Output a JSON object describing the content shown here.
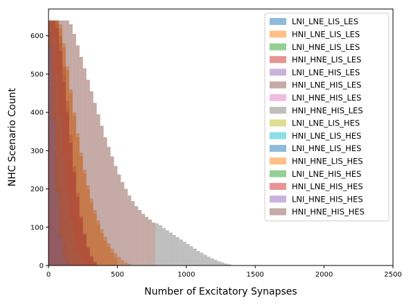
{
  "chart_data": {
    "type": "bar",
    "subtype": "overlapping-histogram",
    "title": "",
    "xlabel": "Number of Excitatory Synapses",
    "ylabel": "NHC Scenario Count",
    "xlim": [
      0,
      2500
    ],
    "ylim": [
      0,
      670
    ],
    "x_ticks": [
      0,
      500,
      1000,
      1500,
      2000,
      2500
    ],
    "y_ticks": [
      0,
      100,
      200,
      300,
      400,
      500,
      600
    ],
    "grid": false,
    "legend_position": "upper-right",
    "bar_opacity": 0.5,
    "series": [
      {
        "name": "LNI_LNE_LIS_LES",
        "color": "#1f77b4",
        "bin_edges": [
          0,
          25,
          50,
          75,
          100,
          125,
          150
        ],
        "counts": [
          640,
          520,
          350,
          200,
          90,
          30
        ]
      },
      {
        "name": "HNI_LNE_LIS_LES",
        "color": "#ff7f0e",
        "bin_edges": [
          0,
          25,
          50,
          75,
          100,
          125,
          150,
          175,
          200,
          225,
          250,
          275,
          300,
          325,
          350,
          375,
          400,
          425,
          450,
          475,
          500
        ],
        "counts": [
          640,
          640,
          640,
          620,
          570,
          510,
          450,
          390,
          335,
          285,
          240,
          200,
          165,
          135,
          108,
          85,
          65,
          48,
          33,
          20
        ]
      },
      {
        "name": "LNI_HNE_LIS_LES",
        "color": "#2ca02c",
        "bin_edges": [
          0,
          25,
          50,
          75,
          100,
          125,
          150
        ],
        "counts": [
          630,
          500,
          330,
          190,
          80,
          25
        ]
      },
      {
        "name": "HNI_HNE_LIS_LES",
        "color": "#d62728",
        "bin_edges": [
          0,
          25,
          50,
          75,
          100,
          125,
          150,
          175,
          200,
          225,
          250,
          275,
          300,
          325,
          350
        ],
        "counts": [
          640,
          640,
          640,
          600,
          520,
          430,
          340,
          260,
          190,
          130,
          85,
          50,
          25,
          10
        ]
      },
      {
        "name": "LNI_LNE_HIS_LES",
        "color": "#9467bd",
        "bin_edges": [
          0,
          25,
          50,
          75,
          100,
          125
        ],
        "counts": [
          600,
          420,
          230,
          100,
          30
        ]
      },
      {
        "name": "HNI_LNE_HIS_LES",
        "color": "#8c564b",
        "bin_edges": [
          0,
          25,
          50,
          75,
          100,
          125,
          150,
          175,
          200,
          225,
          250,
          275,
          300,
          325,
          350
        ],
        "counts": [
          640,
          640,
          630,
          580,
          500,
          410,
          320,
          240,
          175,
          120,
          80,
          48,
          25,
          10
        ]
      },
      {
        "name": "LNI_HNE_HIS_LES",
        "color": "#e377c2",
        "bin_edges": [
          0,
          25,
          50,
          75,
          100,
          125
        ],
        "counts": [
          590,
          400,
          210,
          90,
          25
        ]
      },
      {
        "name": "HNI_HNE_HIS_LES",
        "color": "#7f7f7f",
        "bin_edges": [
          775,
          800,
          825,
          850,
          875,
          900,
          925,
          950,
          975,
          1000,
          1025,
          1050,
          1075,
          1100,
          1125,
          1150,
          1175,
          1200,
          1225,
          1250,
          1275,
          1300,
          1325,
          1350
        ],
        "counts": [
          110,
          105,
          98,
          92,
          86,
          80,
          74,
          68,
          62,
          56,
          50,
          44,
          38,
          33,
          28,
          23,
          19,
          15,
          11,
          8,
          5,
          3,
          1
        ]
      },
      {
        "name": "LNI_LNE_LIS_HES",
        "color": "#bcbd22",
        "bin_edges": [
          0,
          25,
          50,
          75,
          100,
          125,
          150
        ],
        "counts": [
          620,
          480,
          300,
          160,
          70,
          20
        ]
      },
      {
        "name": "HNI_LNE_LIS_HES",
        "color": "#17becf",
        "bin_edges": [
          0,
          25,
          50,
          75,
          100,
          125,
          150,
          175,
          200,
          225,
          250
        ],
        "counts": [
          640,
          600,
          500,
          390,
          280,
          190,
          120,
          70,
          35,
          12
        ]
      },
      {
        "name": "LNI_HNE_LIS_HES",
        "color": "#1f77b4",
        "bin_edges": [
          0,
          25,
          50,
          75,
          100,
          125,
          150
        ],
        "counts": [
          610,
          470,
          290,
          150,
          60,
          18
        ]
      },
      {
        "name": "HNI_HNE_LIS_HES",
        "color": "#ff7f0e",
        "bin_edges": [
          0,
          25,
          50,
          75,
          100,
          125,
          150,
          175,
          200,
          225,
          250,
          275,
          300,
          325,
          350,
          375,
          400,
          425,
          450,
          475,
          500,
          525,
          550,
          575,
          600
        ],
        "counts": [
          640,
          640,
          640,
          630,
          580,
          520,
          460,
          400,
          345,
          295,
          250,
          210,
          175,
          145,
          118,
          95,
          75,
          58,
          44,
          32,
          22,
          14,
          8,
          4
        ]
      },
      {
        "name": "LNI_LNE_HIS_HES",
        "color": "#2ca02c",
        "bin_edges": [
          0,
          25,
          50,
          75,
          100,
          125
        ],
        "counts": [
          580,
          390,
          200,
          80,
          20
        ]
      },
      {
        "name": "HNI_LNE_HIS_HES",
        "color": "#d62728",
        "bin_edges": [
          0,
          25,
          50,
          75,
          100,
          125,
          150,
          175,
          200,
          225,
          250,
          275,
          300,
          325,
          350
        ],
        "counts": [
          640,
          640,
          620,
          560,
          480,
          400,
          320,
          245,
          180,
          125,
          80,
          45,
          22,
          8
        ]
      },
      {
        "name": "LNI_HNE_HIS_HES",
        "color": "#9467bd",
        "bin_edges": [
          0,
          25,
          50,
          75,
          100,
          125
        ],
        "counts": [
          570,
          380,
          190,
          75,
          18
        ]
      },
      {
        "name": "HNI_HNE_HIS_HES",
        "color": "#8c564b",
        "bin_edges": [
          0,
          25,
          50,
          75,
          100,
          125,
          150,
          175,
          200,
          225,
          250,
          275,
          300,
          325,
          350,
          375,
          400,
          425,
          450,
          475,
          500,
          525,
          550,
          575,
          600,
          625,
          650,
          675,
          700,
          725,
          750,
          775
        ],
        "counts": [
          640,
          640,
          640,
          640,
          640,
          640,
          630,
          605,
          575,
          545,
          515,
          485,
          455,
          425,
          395,
          365,
          335,
          310,
          285,
          260,
          238,
          218,
          200,
          183,
          168,
          155,
          145,
          135,
          127,
          120,
          112
        ]
      }
    ]
  }
}
